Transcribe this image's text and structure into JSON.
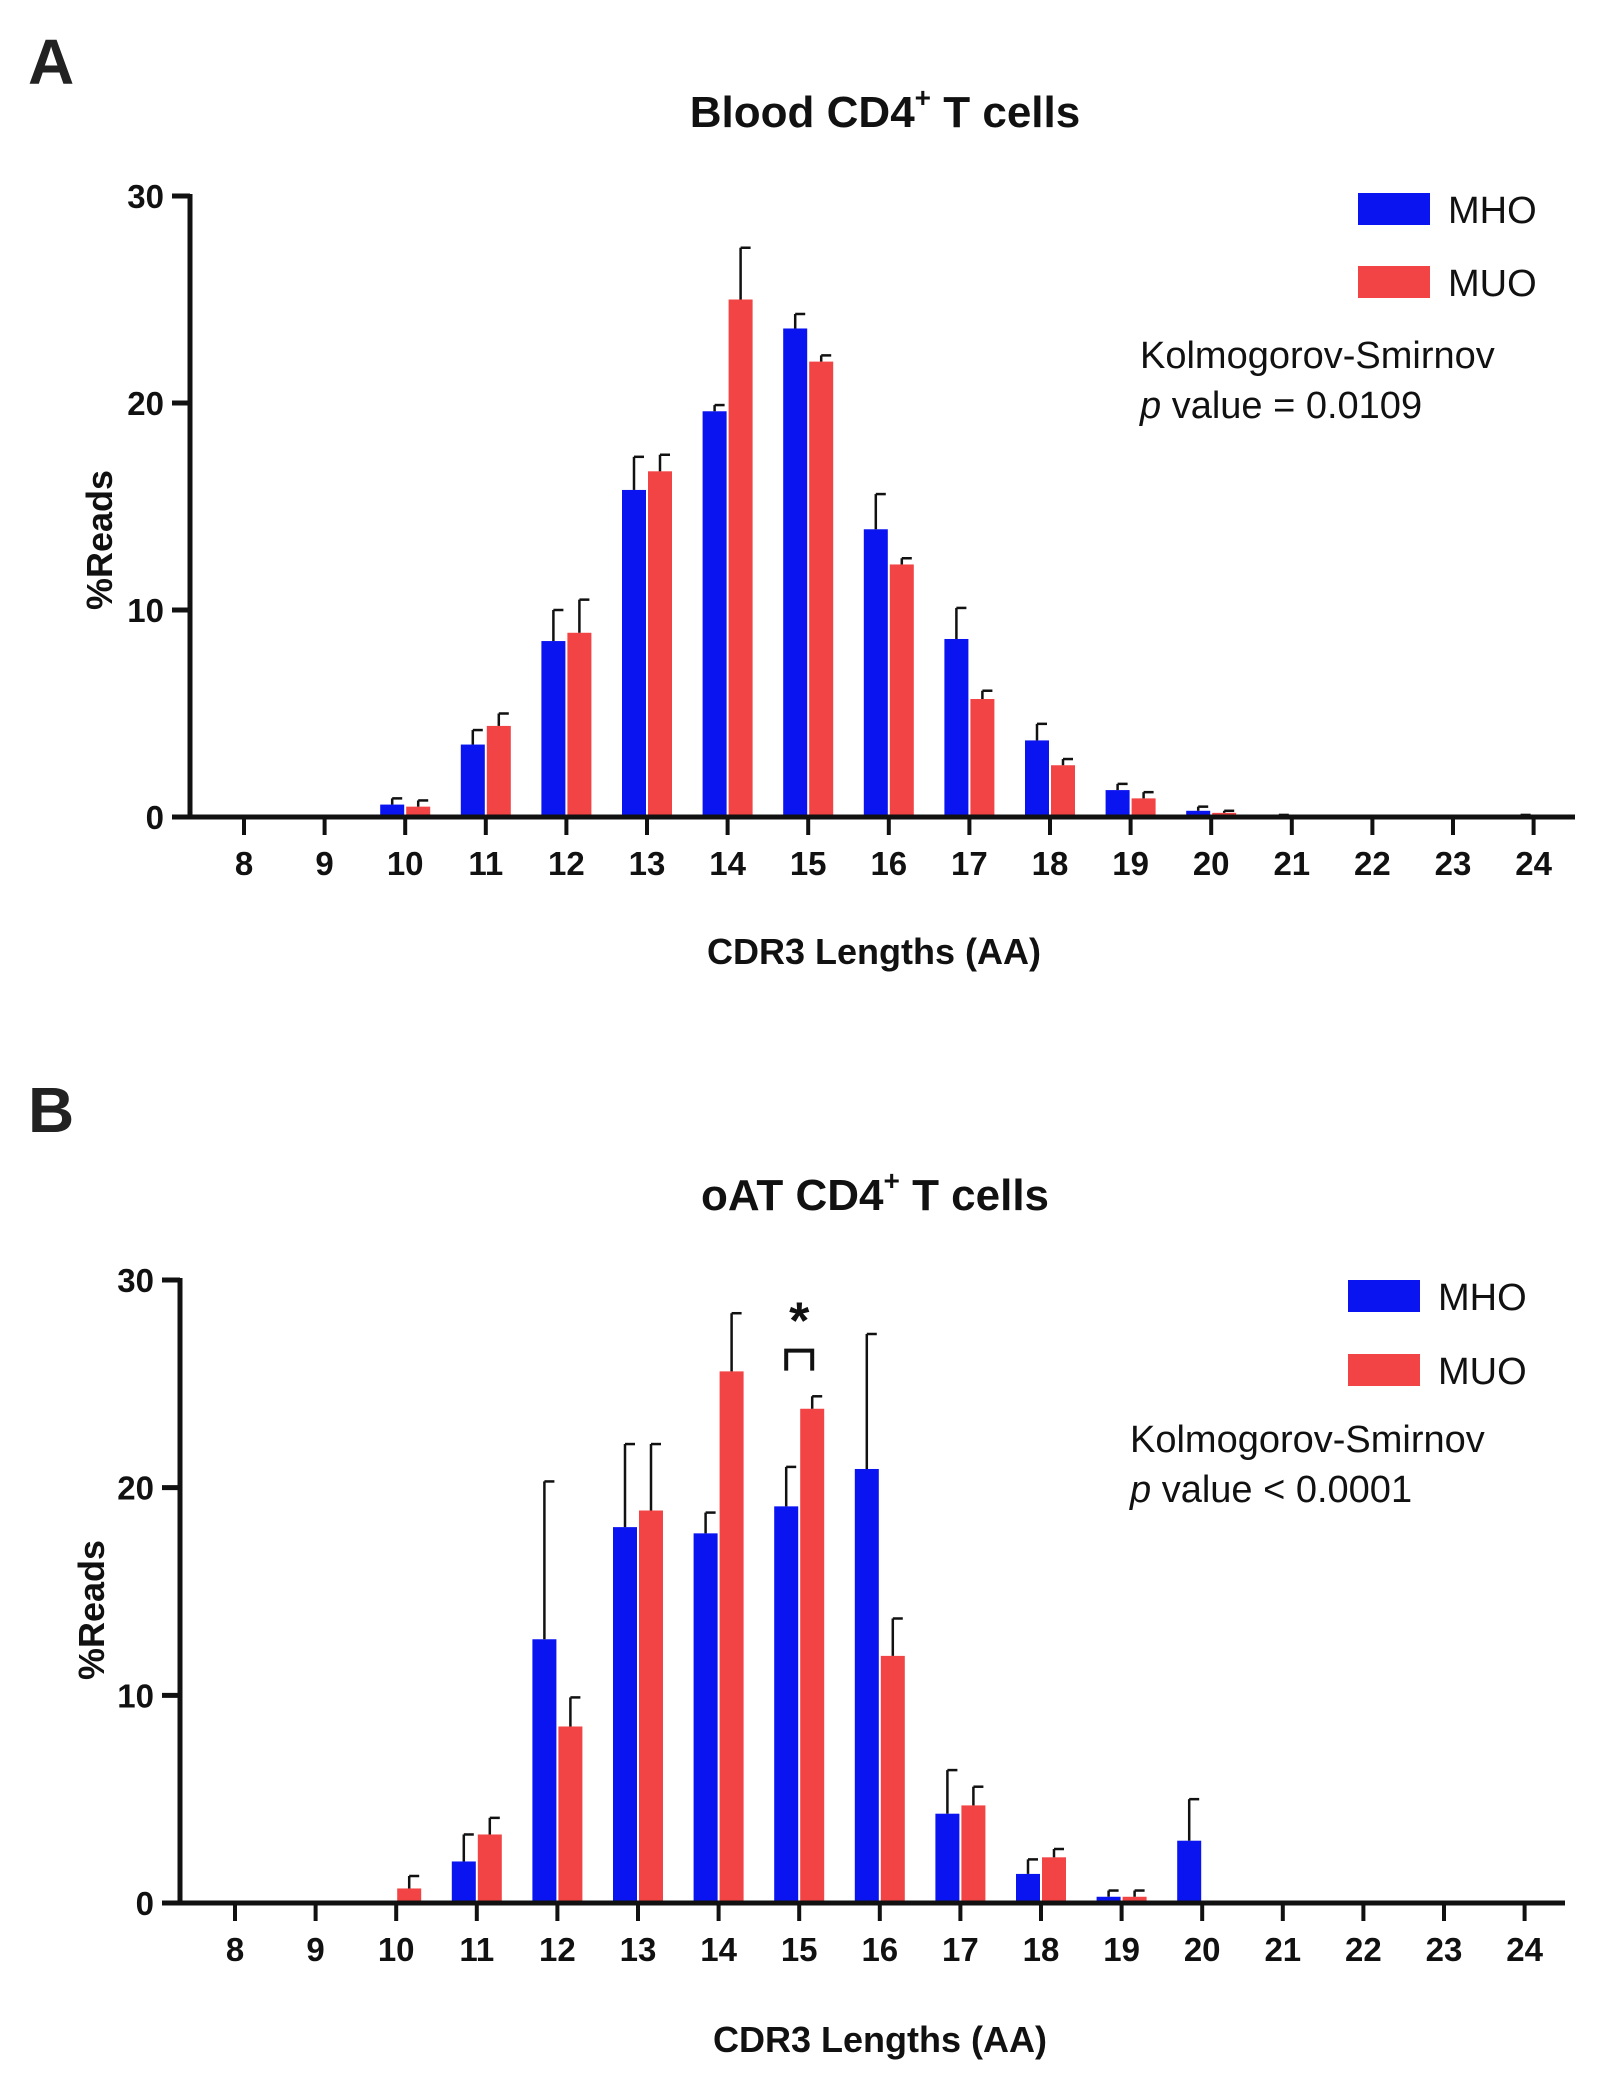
{
  "colors": {
    "mho": "#0a14f0",
    "muo": "#f24444",
    "axis": "#111111"
  },
  "chart_data": [
    {
      "panel": "A",
      "type": "bar",
      "title": "Blood CD4",
      "title_sup": "+",
      "title_suffix": " T cells",
      "xlabel": "CDR3 Lengths (AA)",
      "ylabel": "%Reads",
      "ylim": [
        0,
        30
      ],
      "yticks": [
        "0",
        "10",
        "20",
        "30"
      ],
      "categories": [
        "8",
        "9",
        "10",
        "11",
        "12",
        "13",
        "14",
        "15",
        "16",
        "17",
        "18",
        "19",
        "20",
        "21",
        "22",
        "23",
        "24"
      ],
      "series": [
        {
          "name": "MHO",
          "values": [
            0,
            0,
            0.6,
            3.5,
            8.5,
            15.8,
            19.6,
            23.6,
            13.9,
            8.6,
            3.7,
            1.3,
            0.3,
            0.05,
            0,
            0,
            0.05
          ],
          "errors": [
            0,
            0,
            0.3,
            0.7,
            1.5,
            1.6,
            0.3,
            0.7,
            1.7,
            1.5,
            0.8,
            0.3,
            0.2,
            0.05,
            0,
            0,
            0.05
          ]
        },
        {
          "name": "MUO",
          "values": [
            0,
            0,
            0.5,
            4.4,
            8.9,
            16.7,
            25.0,
            22.0,
            12.2,
            5.7,
            2.5,
            0.9,
            0.2,
            0,
            0,
            0,
            0
          ],
          "errors": [
            0,
            0,
            0.3,
            0.6,
            1.6,
            0.8,
            2.5,
            0.3,
            0.3,
            0.4,
            0.3,
            0.3,
            0.1,
            0,
            0,
            0,
            0
          ]
        }
      ],
      "legend": [
        "MHO",
        "MUO"
      ],
      "stats_line1": "Kolmogorov-Smirnov",
      "stats_p": "p",
      "stats_line2": " value = 0.0109"
    },
    {
      "panel": "B",
      "type": "bar",
      "title": "oAT CD4",
      "title_sup": "+",
      "title_suffix": " T cells",
      "xlabel": "CDR3 Lengths (AA)",
      "ylabel": "%Reads",
      "ylim": [
        0,
        30
      ],
      "yticks": [
        "0",
        "10",
        "20",
        "30"
      ],
      "categories": [
        "8",
        "9",
        "10",
        "11",
        "12",
        "13",
        "14",
        "15",
        "16",
        "17",
        "18",
        "19",
        "20",
        "21",
        "22",
        "23",
        "24"
      ],
      "series": [
        {
          "name": "MHO",
          "values": [
            0,
            0,
            0,
            2.0,
            12.7,
            18.1,
            17.8,
            19.1,
            20.9,
            4.3,
            1.4,
            0.3,
            3.0,
            0,
            0,
            0,
            0
          ],
          "errors": [
            0,
            0,
            0,
            1.3,
            7.6,
            4.0,
            1.0,
            1.9,
            6.5,
            2.1,
            0.7,
            0.3,
            2.0,
            0,
            0,
            0,
            0
          ]
        },
        {
          "name": "MUO",
          "values": [
            0,
            0,
            0.7,
            3.3,
            8.5,
            18.9,
            25.6,
            23.8,
            11.9,
            4.7,
            2.2,
            0.3,
            0,
            0,
            0,
            0,
            0
          ],
          "errors": [
            0,
            0,
            0.6,
            0.8,
            1.4,
            3.2,
            2.8,
            0.6,
            1.8,
            0.9,
            0.4,
            0.3,
            0,
            0,
            0,
            0,
            0
          ]
        }
      ],
      "legend": [
        "MHO",
        "MUO"
      ],
      "stats_line1": "Kolmogorov-Smirnov",
      "stats_p": "p",
      "stats_line2": " value < 0.0001",
      "significance": {
        "category": "15",
        "label": "*"
      }
    }
  ]
}
